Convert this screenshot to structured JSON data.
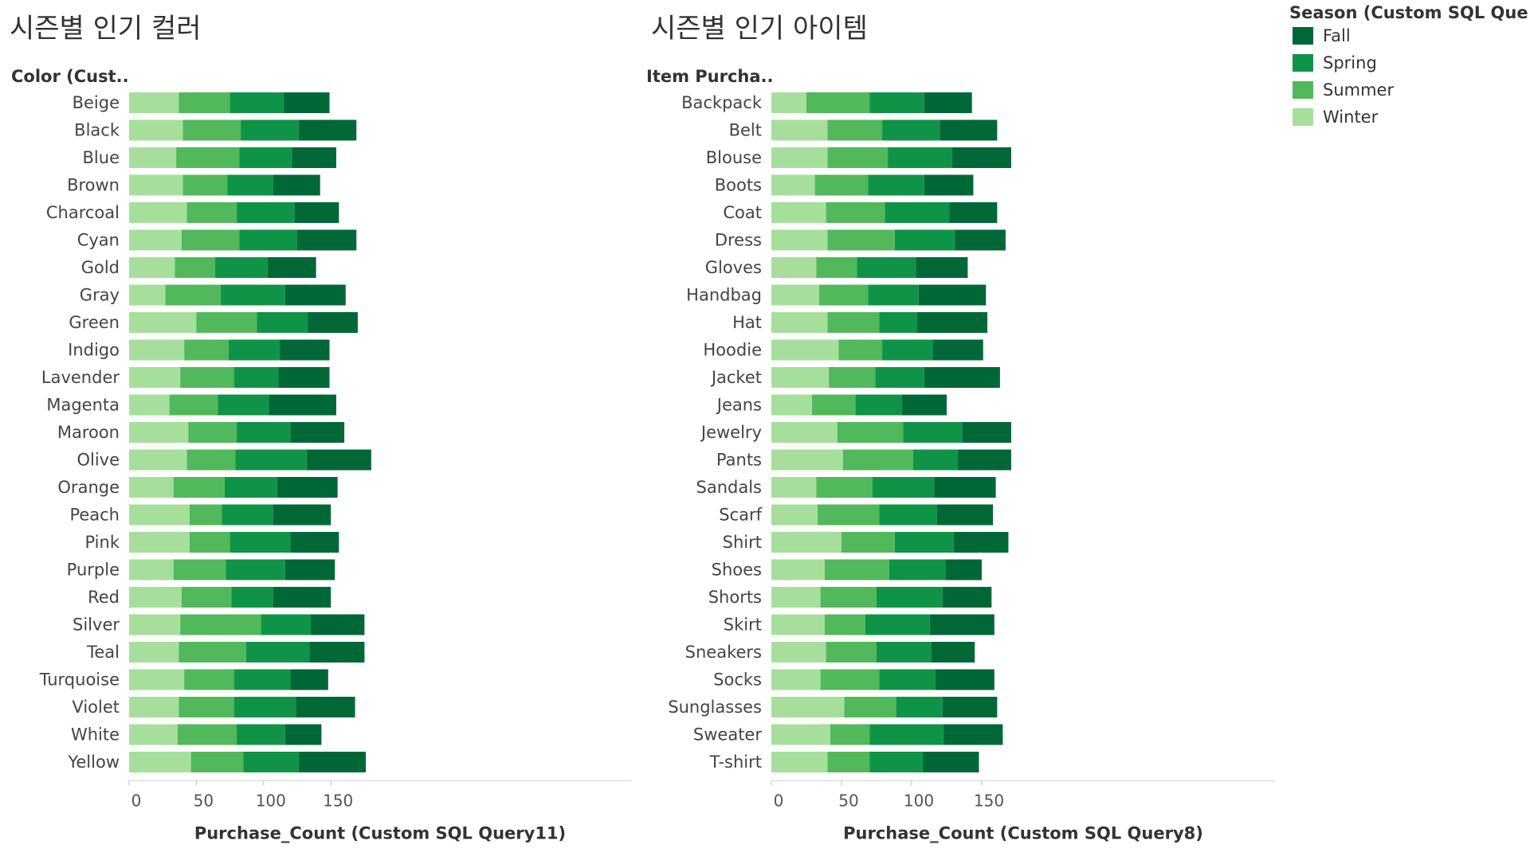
{
  "legend": {
    "title": "Season (Custom SQL Quer..",
    "items": [
      {
        "label": "Fall",
        "color": "#006837"
      },
      {
        "label": "Spring",
        "color": "#0f9447"
      },
      {
        "label": "Summer",
        "color": "#52b85c"
      },
      {
        "label": "Winter",
        "color": "#a6df9c"
      }
    ]
  },
  "chart_data": [
    {
      "type": "bar",
      "orientation": "horizontal",
      "stacked": true,
      "title": "시즌별 인기 컬러",
      "category_header": "Color (Cust..",
      "xlabel": "Purchase_Count (Custom SQL Query11)",
      "xlim": [
        0,
        180
      ],
      "xticks": [
        0,
        50,
        100,
        150
      ],
      "categories": [
        "Beige",
        "Black",
        "Blue",
        "Brown",
        "Charcoal",
        "Cyan",
        "Gold",
        "Gray",
        "Green",
        "Indigo",
        "Lavender",
        "Magenta",
        "Maroon",
        "Olive",
        "Orange",
        "Peach",
        "Pink",
        "Purple",
        "Red",
        "Silver",
        "Teal",
        "Turquoise",
        "Violet",
        "White",
        "Yellow"
      ],
      "series": [
        {
          "name": "Winter",
          "values": [
            37,
            40,
            35,
            40,
            43,
            39,
            34,
            27,
            50,
            41,
            38,
            30,
            44,
            43,
            33,
            45,
            45,
            33,
            39,
            38,
            37,
            41,
            37,
            36,
            46
          ]
        },
        {
          "name": "Summer",
          "values": [
            38,
            43,
            47,
            33,
            37,
            43,
            30,
            41,
            45,
            33,
            40,
            36,
            36,
            36,
            38,
            24,
            30,
            39,
            37,
            60,
            50,
            37,
            41,
            44,
            39
          ]
        },
        {
          "name": "Spring",
          "values": [
            40,
            43,
            39,
            34,
            43,
            43,
            39,
            48,
            38,
            38,
            33,
            38,
            40,
            53,
            39,
            38,
            45,
            44,
            31,
            37,
            47,
            42,
            46,
            36,
            41
          ]
        },
        {
          "name": "Fall",
          "values": [
            34,
            43,
            33,
            35,
            33,
            44,
            36,
            45,
            37,
            37,
            38,
            50,
            40,
            48,
            45,
            43,
            36,
            37,
            43,
            40,
            41,
            28,
            44,
            27,
            50
          ]
        }
      ]
    },
    {
      "type": "bar",
      "orientation": "horizontal",
      "stacked": true,
      "title": "시즌별 인기 아이템",
      "category_header": "Item Purcha..",
      "xlabel": "Purchase_Count (Custom SQL Query8)",
      "xlim": [
        0,
        180
      ],
      "xticks": [
        0,
        50,
        100,
        150
      ],
      "categories": [
        "Backpack",
        "Belt",
        "Blouse",
        "Boots",
        "Coat",
        "Dress",
        "Gloves",
        "Handbag",
        "Hat",
        "Hoodie",
        "Jacket",
        "Jeans",
        "Jewelry",
        "Pants",
        "Sandals",
        "Scarf",
        "Shirt",
        "Shoes",
        "Shorts",
        "Skirt",
        "Sneakers",
        "Socks",
        "Sunglasses",
        "Sweater",
        "T-shirt"
      ],
      "series": [
        {
          "name": "Winter",
          "values": [
            25,
            40,
            40,
            31,
            39,
            40,
            32,
            34,
            40,
            48,
            41,
            29,
            47,
            51,
            32,
            33,
            50,
            38,
            35,
            38,
            39,
            35,
            52,
            42,
            40
          ]
        },
        {
          "name": "Summer",
          "values": [
            45,
            39,
            43,
            38,
            42,
            48,
            29,
            35,
            37,
            31,
            33,
            31,
            47,
            50,
            40,
            44,
            38,
            46,
            40,
            29,
            36,
            42,
            37,
            28,
            30
          ]
        },
        {
          "name": "Spring",
          "values": [
            39,
            41,
            46,
            40,
            46,
            43,
            42,
            36,
            27,
            36,
            35,
            33,
            42,
            32,
            44,
            41,
            42,
            40,
            47,
            46,
            39,
            40,
            33,
            53,
            38
          ]
        },
        {
          "name": "Fall",
          "values": [
            34,
            41,
            42,
            35,
            34,
            36,
            37,
            48,
            50,
            36,
            54,
            32,
            35,
            38,
            44,
            40,
            39,
            26,
            35,
            46,
            31,
            42,
            39,
            42,
            40
          ]
        }
      ]
    }
  ]
}
